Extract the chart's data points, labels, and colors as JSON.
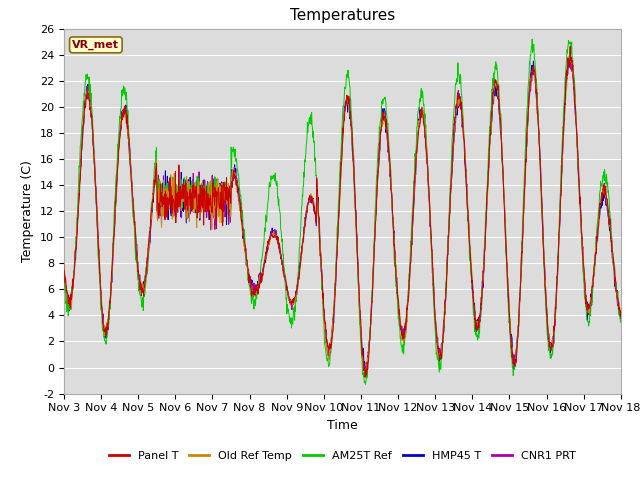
{
  "title": "Temperatures",
  "xlabel": "Time",
  "ylabel": "Temperature (C)",
  "ylim": [
    -2,
    26
  ],
  "xlim": [
    0,
    15
  ],
  "xtick_labels": [
    "Nov 3",
    "Nov 4",
    "Nov 5",
    "Nov 6",
    "Nov 7",
    "Nov 8",
    "Nov 9",
    "Nov 10",
    "Nov 11",
    "Nov 12",
    "Nov 13",
    "Nov 14",
    "Nov 15",
    "Nov 16",
    "Nov 17",
    "Nov 18"
  ],
  "legend_labels": [
    "Panel T",
    "Old Ref Temp",
    "AM25T Ref",
    "HMP45 T",
    "CNR1 PRT"
  ],
  "legend_colors": [
    "#cc0000",
    "#cc8800",
    "#00cc00",
    "#0000cc",
    "#aa00aa"
  ],
  "station_label": "VR_met",
  "plot_bg_color": "#dcdcdc",
  "title_fontsize": 11,
  "axis_fontsize": 9,
  "tick_fontsize": 8,
  "day_peaks": [
    18.5,
    22.5,
    18.0,
    16.5,
    20.5,
    11.0,
    14.5,
    19.5,
    21.5,
    18.0,
    20.5,
    21.0,
    22.0,
    23.5,
    24.0,
    6.0
  ],
  "day_troughs": [
    5.5,
    2.2,
    5.2,
    11.5,
    7.5,
    6.0,
    4.5,
    1.5,
    -0.8,
    2.8,
    0.5,
    3.5,
    0.5,
    1.0,
    4.5,
    3.5
  ],
  "peak_phase": 0.38,
  "grid_color": "#ffffff",
  "spine_color": "#aaaaaa"
}
